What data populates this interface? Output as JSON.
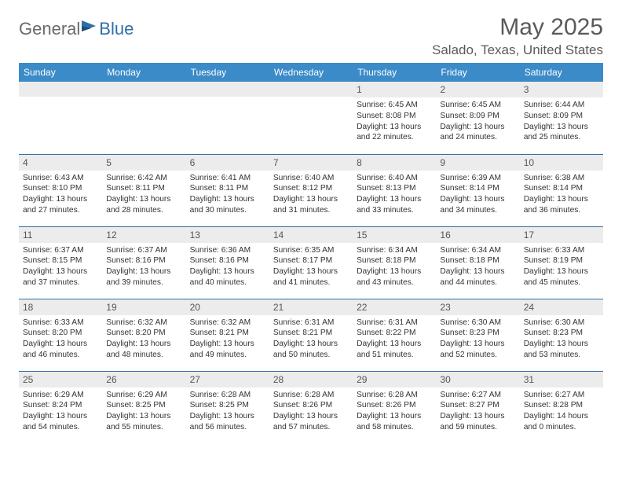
{
  "brand": {
    "part1": "General",
    "part2": "Blue"
  },
  "title": "May 2025",
  "location": "Salado, Texas, United States",
  "colors": {
    "header_bg": "#3b8bc8",
    "header_text": "#ffffff",
    "rule": "#2f6fa8",
    "daynum_bg": "#ececec",
    "body_text": "#333333",
    "title_text": "#5a5a5a"
  },
  "dayNames": [
    "Sunday",
    "Monday",
    "Tuesday",
    "Wednesday",
    "Thursday",
    "Friday",
    "Saturday"
  ],
  "weeks": [
    [
      {
        "day": "",
        "sunrise": "",
        "sunset": "",
        "daylight": ""
      },
      {
        "day": "",
        "sunrise": "",
        "sunset": "",
        "daylight": ""
      },
      {
        "day": "",
        "sunrise": "",
        "sunset": "",
        "daylight": ""
      },
      {
        "day": "",
        "sunrise": "",
        "sunset": "",
        "daylight": ""
      },
      {
        "day": "1",
        "sunrise": "6:45 AM",
        "sunset": "8:08 PM",
        "daylight": "13 hours and 22 minutes."
      },
      {
        "day": "2",
        "sunrise": "6:45 AM",
        "sunset": "8:09 PM",
        "daylight": "13 hours and 24 minutes."
      },
      {
        "day": "3",
        "sunrise": "6:44 AM",
        "sunset": "8:09 PM",
        "daylight": "13 hours and 25 minutes."
      }
    ],
    [
      {
        "day": "4",
        "sunrise": "6:43 AM",
        "sunset": "8:10 PM",
        "daylight": "13 hours and 27 minutes."
      },
      {
        "day": "5",
        "sunrise": "6:42 AM",
        "sunset": "8:11 PM",
        "daylight": "13 hours and 28 minutes."
      },
      {
        "day": "6",
        "sunrise": "6:41 AM",
        "sunset": "8:11 PM",
        "daylight": "13 hours and 30 minutes."
      },
      {
        "day": "7",
        "sunrise": "6:40 AM",
        "sunset": "8:12 PM",
        "daylight": "13 hours and 31 minutes."
      },
      {
        "day": "8",
        "sunrise": "6:40 AM",
        "sunset": "8:13 PM",
        "daylight": "13 hours and 33 minutes."
      },
      {
        "day": "9",
        "sunrise": "6:39 AM",
        "sunset": "8:14 PM",
        "daylight": "13 hours and 34 minutes."
      },
      {
        "day": "10",
        "sunrise": "6:38 AM",
        "sunset": "8:14 PM",
        "daylight": "13 hours and 36 minutes."
      }
    ],
    [
      {
        "day": "11",
        "sunrise": "6:37 AM",
        "sunset": "8:15 PM",
        "daylight": "13 hours and 37 minutes."
      },
      {
        "day": "12",
        "sunrise": "6:37 AM",
        "sunset": "8:16 PM",
        "daylight": "13 hours and 39 minutes."
      },
      {
        "day": "13",
        "sunrise": "6:36 AM",
        "sunset": "8:16 PM",
        "daylight": "13 hours and 40 minutes."
      },
      {
        "day": "14",
        "sunrise": "6:35 AM",
        "sunset": "8:17 PM",
        "daylight": "13 hours and 41 minutes."
      },
      {
        "day": "15",
        "sunrise": "6:34 AM",
        "sunset": "8:18 PM",
        "daylight": "13 hours and 43 minutes."
      },
      {
        "day": "16",
        "sunrise": "6:34 AM",
        "sunset": "8:18 PM",
        "daylight": "13 hours and 44 minutes."
      },
      {
        "day": "17",
        "sunrise": "6:33 AM",
        "sunset": "8:19 PM",
        "daylight": "13 hours and 45 minutes."
      }
    ],
    [
      {
        "day": "18",
        "sunrise": "6:33 AM",
        "sunset": "8:20 PM",
        "daylight": "13 hours and 46 minutes."
      },
      {
        "day": "19",
        "sunrise": "6:32 AM",
        "sunset": "8:20 PM",
        "daylight": "13 hours and 48 minutes."
      },
      {
        "day": "20",
        "sunrise": "6:32 AM",
        "sunset": "8:21 PM",
        "daylight": "13 hours and 49 minutes."
      },
      {
        "day": "21",
        "sunrise": "6:31 AM",
        "sunset": "8:21 PM",
        "daylight": "13 hours and 50 minutes."
      },
      {
        "day": "22",
        "sunrise": "6:31 AM",
        "sunset": "8:22 PM",
        "daylight": "13 hours and 51 minutes."
      },
      {
        "day": "23",
        "sunrise": "6:30 AM",
        "sunset": "8:23 PM",
        "daylight": "13 hours and 52 minutes."
      },
      {
        "day": "24",
        "sunrise": "6:30 AM",
        "sunset": "8:23 PM",
        "daylight": "13 hours and 53 minutes."
      }
    ],
    [
      {
        "day": "25",
        "sunrise": "6:29 AM",
        "sunset": "8:24 PM",
        "daylight": "13 hours and 54 minutes."
      },
      {
        "day": "26",
        "sunrise": "6:29 AM",
        "sunset": "8:25 PM",
        "daylight": "13 hours and 55 minutes."
      },
      {
        "day": "27",
        "sunrise": "6:28 AM",
        "sunset": "8:25 PM",
        "daylight": "13 hours and 56 minutes."
      },
      {
        "day": "28",
        "sunrise": "6:28 AM",
        "sunset": "8:26 PM",
        "daylight": "13 hours and 57 minutes."
      },
      {
        "day": "29",
        "sunrise": "6:28 AM",
        "sunset": "8:26 PM",
        "daylight": "13 hours and 58 minutes."
      },
      {
        "day": "30",
        "sunrise": "6:27 AM",
        "sunset": "8:27 PM",
        "daylight": "13 hours and 59 minutes."
      },
      {
        "day": "31",
        "sunrise": "6:27 AM",
        "sunset": "8:28 PM",
        "daylight": "14 hours and 0 minutes."
      }
    ]
  ],
  "labels": {
    "sunrise": "Sunrise:",
    "sunset": "Sunset:",
    "daylight": "Daylight:"
  }
}
